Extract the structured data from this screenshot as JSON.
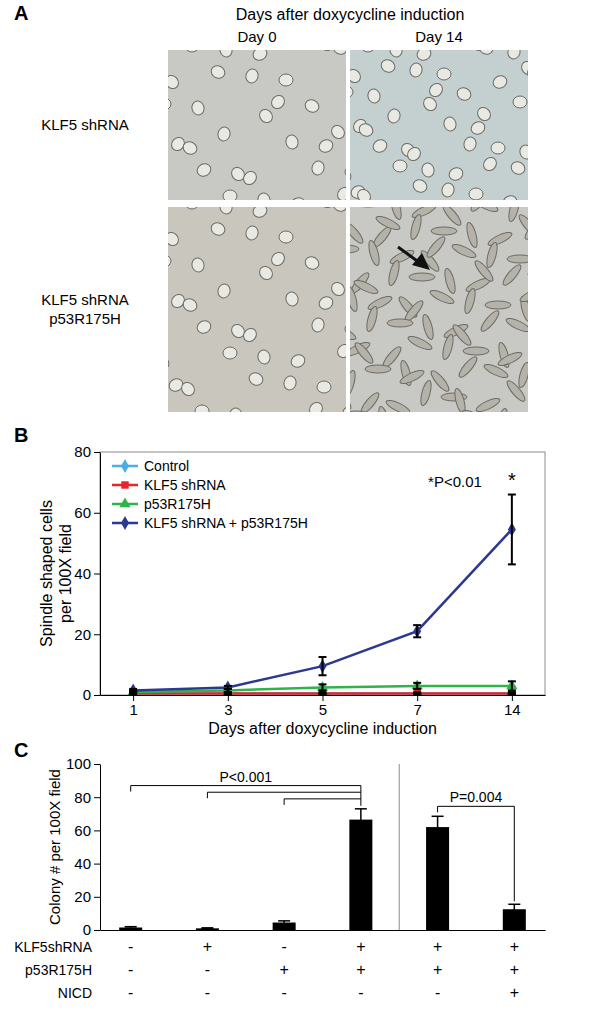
{
  "panel_labels": [
    "A",
    "B",
    "C"
  ],
  "panel_a": {
    "title": "Days after doxycycline induction",
    "columns": [
      "Day 0",
      "Day 14"
    ],
    "rows": [
      [
        "KLF5 shRNA"
      ],
      [
        "KLF5 shRNA",
        "p53R175H"
      ]
    ]
  },
  "chart_data": [
    {
      "type": "line",
      "categories": [
        "1",
        "3",
        "5",
        "7",
        "14"
      ],
      "xlabel": "Days after doxycycline induction",
      "ylabel": [
        "Spindle shaped cells",
        "per 100X field"
      ],
      "ylim": [
        0,
        80
      ],
      "yticks": [
        0,
        20,
        40,
        60,
        80
      ],
      "legend": "upper left",
      "series": [
        {
          "name": "Control",
          "color": "#4daee3",
          "marker": "diamond",
          "values": [
            0.5,
            0.5,
            0.5,
            0.5,
            0.5
          ],
          "errors": [
            0.3,
            0.3,
            0.3,
            0.3,
            0.3
          ]
        },
        {
          "name": "KLF5 shRNA",
          "color": "#e3262b",
          "marker": "square",
          "values": [
            0.5,
            0.5,
            0.5,
            0.5,
            0.5
          ],
          "errors": [
            0.3,
            0.3,
            0.3,
            0.3,
            0.3
          ]
        },
        {
          "name": "p53R175H",
          "color": "#2fb34b",
          "marker": "triangle",
          "values": [
            1,
            1.5,
            2.5,
            3,
            3
          ],
          "errors": [
            0.5,
            0.5,
            1,
            1,
            1.5
          ]
        },
        {
          "name": "KLF5 shRNA + p53R175H",
          "color": "#2b3990",
          "marker": "diamond",
          "values": [
            1.5,
            2.5,
            9.5,
            21,
            54.5
          ],
          "errors": [
            0.5,
            0.5,
            3,
            2,
            11.5
          ]
        }
      ],
      "annotations": [
        {
          "text": "*P<0.01"
        },
        {
          "text": "*",
          "series": "KLF5 shRNA + p53R175H",
          "category": "14"
        }
      ]
    },
    {
      "type": "bar",
      "categories": [
        null,
        null,
        null,
        null,
        null,
        null
      ],
      "values": [
        1.5,
        1,
        4.5,
        66.5,
        62,
        12.5
      ],
      "errors": [
        0.5,
        0.3,
        1,
        6.5,
        6.5,
        3
      ],
      "color": "#000000",
      "ylabel": "Colony # per 100X field",
      "ylim": [
        0,
        100
      ],
      "yticks": [
        0,
        20,
        40,
        60,
        80,
        100
      ],
      "conditions": [
        {
          "name": "KLF5shRNA",
          "signs": [
            "-",
            "+",
            "-",
            "+",
            "+",
            "+"
          ]
        },
        {
          "name": "p53R175H",
          "signs": [
            "-",
            "-",
            "+",
            "+",
            "+",
            "+"
          ]
        },
        {
          "name": "NICD",
          "signs": [
            "-",
            "-",
            "-",
            "-",
            "-",
            "+"
          ]
        }
      ],
      "comparisons": [
        {
          "label": "P<0.001",
          "from": [
            0,
            1,
            2
          ],
          "to": 3
        },
        {
          "label": "P=0.004",
          "from": [
            4
          ],
          "to": 5
        }
      ],
      "divider_after": 3
    }
  ]
}
